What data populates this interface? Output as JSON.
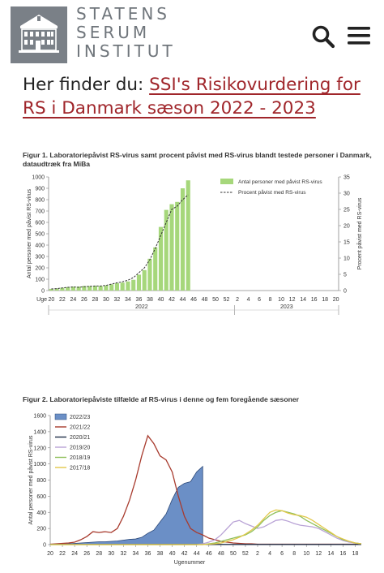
{
  "header": {
    "logo_lines": [
      "STATENS",
      "SERUM",
      "INSTITUT"
    ],
    "search_icon": "search-icon",
    "menu_icon": "hamburger-menu-icon"
  },
  "headline": {
    "prefix": "Her finder du: ",
    "link_text": "SSI's Risikovurdering for RS i Danmark sæson 2022 - 2023",
    "link_color": "#a0262b"
  },
  "figure1": {
    "caption": "Figur 1. Laboratoriepåvist RS-virus samt procent påvist med RS-virus blandt testede personer i Danmark, dataudtræk fra MiBa"
  },
  "figure2": {
    "caption": "Figur 2. Laboratoriepåviste tilfælde af RS-virus i denne og fem foregående sæsoner"
  },
  "chart_data": [
    {
      "type": "bar",
      "ylabel": "Antal personer med påvist RS-virus",
      "y2label": "Procent påvist med RS-virus",
      "ylim": [
        0,
        1000
      ],
      "y2lim": [
        0,
        35
      ],
      "yticks": [
        0,
        100,
        200,
        300,
        400,
        500,
        600,
        700,
        800,
        900,
        1000
      ],
      "y2ticks": [
        0,
        5,
        10,
        15,
        20,
        25,
        30,
        35
      ],
      "xlabel_prefix": "Uge",
      "xticks": [
        "20",
        "22",
        "24",
        "26",
        "28",
        "30",
        "32",
        "34",
        "36",
        "38",
        "40",
        "42",
        "44",
        "46",
        "48",
        "50",
        "52",
        "2",
        "4",
        "6",
        "8",
        "10",
        "12",
        "14",
        "16",
        "18",
        "20"
      ],
      "year_labels": [
        "2022",
        "2023"
      ],
      "weeks": [
        "20",
        "21",
        "22",
        "23",
        "24",
        "25",
        "26",
        "27",
        "28",
        "29",
        "30",
        "31",
        "32",
        "33",
        "34",
        "35",
        "36",
        "37",
        "38",
        "39",
        "40",
        "41",
        "42",
        "43",
        "44",
        "45"
      ],
      "legend_position": "top-right",
      "series": [
        {
          "name": "Antal personer med påvist RS-virus",
          "type": "bar",
          "color": "#a6d77b",
          "values": [
            15,
            18,
            25,
            30,
            35,
            35,
            40,
            40,
            42,
            40,
            45,
            55,
            65,
            70,
            80,
            95,
            140,
            180,
            280,
            380,
            560,
            710,
            760,
            780,
            900,
            970
          ]
        },
        {
          "name": "Procent påvist med RS-virus",
          "type": "line",
          "style": "dashed",
          "color": "#333333",
          "values": [
            0.5,
            0.6,
            0.8,
            1.0,
            1.1,
            1.0,
            1.2,
            1.3,
            1.4,
            1.4,
            1.6,
            2.0,
            2.4,
            2.7,
            3.2,
            4.0,
            5.5,
            7.0,
            9.5,
            13,
            17,
            21,
            25,
            26,
            28,
            29.5
          ]
        }
      ]
    },
    {
      "type": "line",
      "ylabel": "Antal personer med påvist RS-virus",
      "xlabel": "Ugenummer",
      "ylim": [
        0,
        1600
      ],
      "yticks": [
        0,
        200,
        400,
        600,
        800,
        1000,
        1200,
        1400,
        1600
      ],
      "xticks": [
        "20",
        "22",
        "24",
        "26",
        "28",
        "30",
        "32",
        "34",
        "36",
        "38",
        "40",
        "42",
        "44",
        "46",
        "48",
        "50",
        "52",
        "2",
        "4",
        "6",
        "8",
        "10",
        "12",
        "14",
        "16",
        "18"
      ],
      "legend_position": "top-left",
      "series": [
        {
          "name": "2022/23",
          "type": "area",
          "color": "#6b8fc6",
          "values": [
            5,
            5,
            10,
            10,
            15,
            20,
            25,
            30,
            35,
            35,
            40,
            45,
            55,
            65,
            70,
            90,
            140,
            180,
            280,
            380,
            560,
            710,
            760,
            780,
            900,
            970
          ]
        },
        {
          "name": "2021/22",
          "color": "#a83b2e",
          "values": [
            5,
            10,
            15,
            20,
            30,
            60,
            100,
            160,
            150,
            160,
            150,
            200,
            350,
            550,
            800,
            1100,
            1350,
            1250,
            1100,
            1050,
            900,
            600,
            350,
            200,
            150,
            120,
            80,
            60,
            40,
            30,
            20,
            15,
            10,
            10,
            5,
            5,
            5,
            5,
            5,
            5,
            5,
            5,
            5,
            5,
            5,
            5,
            5,
            5,
            5,
            5,
            5,
            5
          ]
        },
        {
          "name": "2020/21",
          "color": "#1f2f47",
          "values": [
            2,
            2,
            2,
            2,
            2,
            2,
            2,
            2,
            2,
            2,
            2,
            2,
            2,
            2,
            2,
            2,
            2,
            2,
            2,
            2,
            2,
            2,
            2,
            2,
            2,
            2,
            2,
            2,
            2,
            2,
            2,
            2,
            2,
            2,
            2,
            2,
            2,
            2,
            2,
            2,
            2,
            2,
            2,
            2,
            2,
            2,
            2,
            2,
            2,
            2,
            2,
            2
          ]
        },
        {
          "name": "2019/20",
          "color": "#b9a3d6",
          "values": [
            0,
            0,
            0,
            0,
            0,
            0,
            0,
            0,
            0,
            0,
            0,
            0,
            0,
            0,
            0,
            0,
            0,
            0,
            0,
            0,
            0,
            0,
            0,
            0,
            0,
            10,
            30,
            60,
            120,
            200,
            280,
            300,
            260,
            230,
            200,
            220,
            260,
            300,
            310,
            290,
            260,
            240,
            230,
            220,
            200,
            160,
            120,
            80,
            50,
            30,
            20,
            10
          ]
        },
        {
          "name": "2018/19",
          "color": "#8fbf5a",
          "values": [
            0,
            0,
            0,
            0,
            0,
            0,
            0,
            0,
            0,
            0,
            0,
            0,
            0,
            0,
            0,
            0,
            0,
            0,
            0,
            0,
            0,
            0,
            0,
            0,
            0,
            0,
            10,
            20,
            40,
            60,
            80,
            100,
            120,
            160,
            220,
            300,
            360,
            400,
            420,
            400,
            380,
            350,
            300,
            260,
            220,
            180,
            140,
            100,
            60,
            40,
            20,
            10
          ]
        },
        {
          "name": "2017/18",
          "color": "#e2c84a",
          "values": [
            0,
            0,
            0,
            0,
            0,
            0,
            0,
            0,
            0,
            0,
            0,
            0,
            0,
            0,
            0,
            0,
            0,
            0,
            0,
            0,
            0,
            0,
            0,
            0,
            0,
            0,
            5,
            10,
            20,
            40,
            60,
            90,
            130,
            180,
            240,
            320,
            400,
            430,
            420,
            390,
            370,
            360,
            340,
            300,
            250,
            200,
            150,
            100,
            70,
            40,
            20,
            10
          ]
        }
      ]
    }
  ]
}
